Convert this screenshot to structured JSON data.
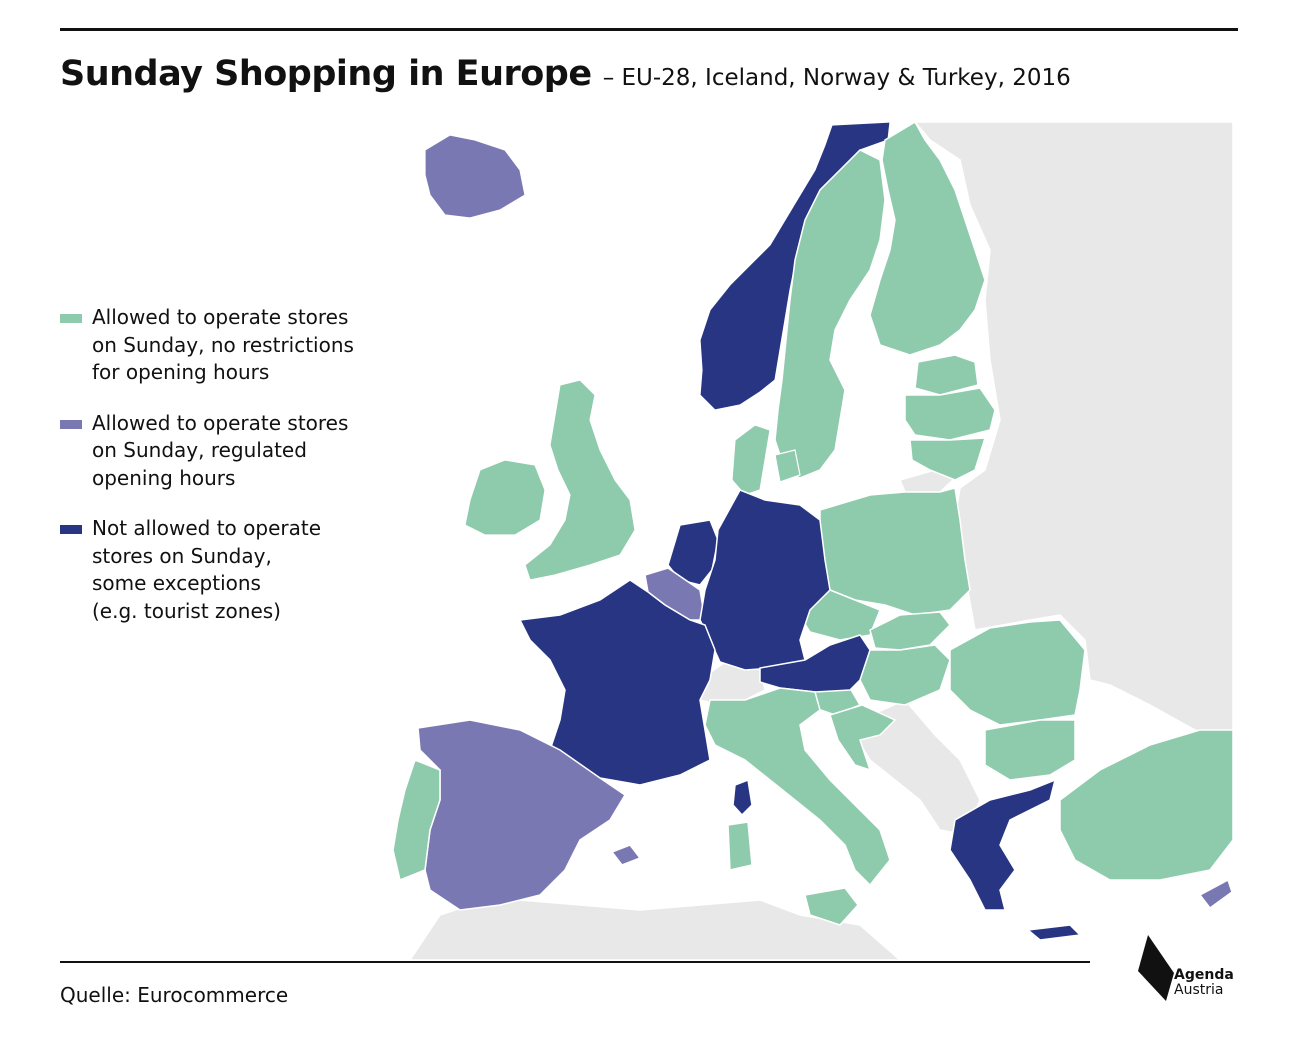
{
  "header": {
    "title": "Sunday Shopping in Europe",
    "subtitle": "– EU-28, Iceland, Norway & Turkey, 2016"
  },
  "legend": {
    "items": [
      {
        "label": "Allowed to operate stores\non Sunday, no restrictions\nfor opening hours",
        "color": "#8ecaac"
      },
      {
        "label": "Allowed to operate stores\non Sunday, regulated\nopening hours",
        "color": "#7a78b3"
      },
      {
        "label": "Not allowed to operate\nstores on Sunday,\nsome exceptions\n(e.g. tourist zones)",
        "color": "#283583"
      }
    ]
  },
  "colors": {
    "no_data": "#e8e8e8",
    "sea": "#ffffff",
    "border": "#ffffff"
  },
  "regions": {
    "no_restrictions": [
      "Finland",
      "Sweden",
      "Denmark",
      "United Kingdom",
      "Ireland",
      "Estonia",
      "Latvia",
      "Lithuania",
      "Poland",
      "Czech Republic",
      "Slovakia",
      "Hungary",
      "Slovenia",
      "Croatia",
      "Romania",
      "Bulgaria",
      "Italy",
      "Portugal",
      "Turkey"
    ],
    "regulated_hours": [
      "Iceland",
      "Belgium",
      "Spain",
      "Cyprus"
    ],
    "not_allowed": [
      "Norway",
      "Netherlands",
      "Luxembourg",
      "Germany",
      "France",
      "Austria",
      "Greece"
    ]
  },
  "footer": {
    "source": "Quelle: Eurocommerce",
    "logo_line1": "Agenda",
    "logo_line2": "Austria"
  }
}
